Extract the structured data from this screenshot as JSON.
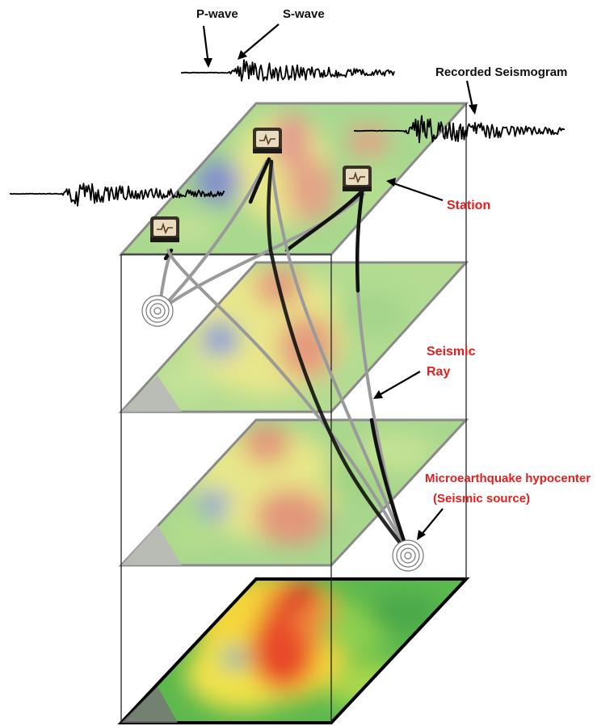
{
  "labels": {
    "p_wave": "P-wave",
    "s_wave": "S-wave",
    "recorded_seismogram": "Recorded Seismogram",
    "station": "Station",
    "seismic_ray_line1": "Seismic",
    "seismic_ray_line2": "Ray",
    "hypocenter_line1": "Microearthquake hypocenter",
    "hypocenter_line2": "(Seismic source)"
  },
  "colors": {
    "label_black": "#111111",
    "label_red": "#e02020",
    "ray_gray": "#9a9a9a",
    "ray_black": "#111111",
    "slice_high": "#e8403a",
    "slice_mid": "#f4e46a",
    "slice_low_green": "#57b551",
    "slice_low_blue": "#4a6fd6"
  },
  "icons": {
    "station": "seismometer-station-icon",
    "source": "concentric-rings-source-icon"
  },
  "slices": {
    "count": 4,
    "top_layer": "tomography-slice-surface",
    "bottom_layer": "tomography-slice-deep"
  }
}
